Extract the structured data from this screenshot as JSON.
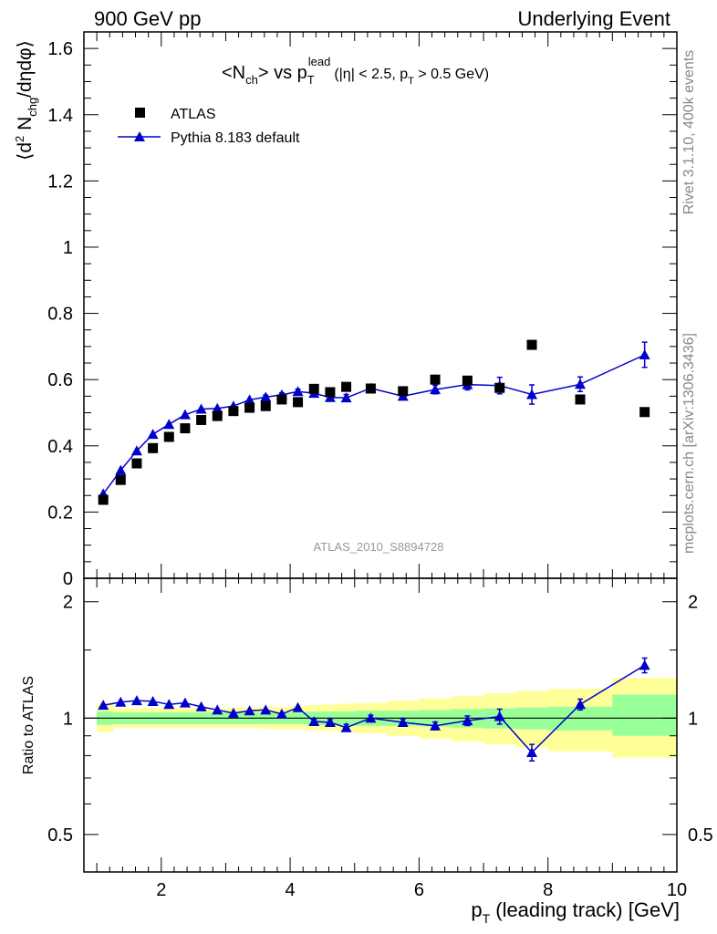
{
  "header": {
    "left": "900 GeV pp",
    "right": "Underlying Event"
  },
  "side_labels": {
    "top": "Rivet 3.1.10,  400k events",
    "bottom": "mcplots.cern.ch [arXiv:1306.3436]"
  },
  "watermark": "ATLAS_2010_S8894728",
  "chart_data": [
    {
      "type": "scatter",
      "panel": "main",
      "title": "<Nch> vs pT lead (|η| < 2.5, pT > 0.5 GeV)",
      "xlabel": "pT (leading track) [GeV]",
      "ylabel": "⟨d² Nchg/dηdφ⟩",
      "xlim": [
        0.8,
        10.0
      ],
      "ylim": [
        0,
        1.65
      ],
      "x_ticks": [
        2,
        4,
        6,
        8,
        10
      ],
      "y_ticks": [
        0,
        0.2,
        0.4,
        0.6,
        0.8,
        1,
        1.2,
        1.4,
        1.6
      ],
      "y_tick_labels": [
        "0",
        "0.2",
        "0.4",
        "0.6",
        "0.8",
        "1",
        "1.2",
        "1.4",
        "1.6"
      ],
      "legend_position": "top-left",
      "series": [
        {
          "name": "ATLAS",
          "marker": "square",
          "color": "#000000",
          "x": [
            1.1,
            1.37,
            1.62,
            1.87,
            2.12,
            2.37,
            2.62,
            2.87,
            3.12,
            3.37,
            3.62,
            3.87,
            4.12,
            4.37,
            4.62,
            4.87,
            5.25,
            5.75,
            6.25,
            6.75,
            7.25,
            7.75,
            8.5,
            9.5
          ],
          "y": [
            0.237,
            0.297,
            0.347,
            0.393,
            0.427,
            0.453,
            0.478,
            0.49,
            0.505,
            0.515,
            0.52,
            0.54,
            0.532,
            0.572,
            0.562,
            0.578,
            0.573,
            0.565,
            0.6,
            0.597,
            0.575,
            0.705,
            0.54,
            0.502
          ]
        },
        {
          "name": "Pythia 8.183 default",
          "marker": "triangle",
          "color": "#0000cc",
          "x": [
            1.1,
            1.37,
            1.62,
            1.87,
            2.12,
            2.37,
            2.62,
            2.87,
            3.12,
            3.37,
            3.62,
            3.87,
            4.12,
            4.37,
            4.62,
            4.87,
            5.25,
            5.75,
            6.25,
            6.75,
            7.25,
            7.75,
            8.5,
            9.5
          ],
          "y": [
            0.255,
            0.326,
            0.385,
            0.435,
            0.465,
            0.494,
            0.511,
            0.513,
            0.52,
            0.539,
            0.547,
            0.554,
            0.564,
            0.559,
            0.546,
            0.545,
            0.574,
            0.55,
            0.57,
            0.585,
            0.582,
            0.555,
            0.586,
            0.675
          ],
          "yerr": [
            0.003,
            0.003,
            0.003,
            0.003,
            0.004,
            0.004,
            0.004,
            0.005,
            0.005,
            0.005,
            0.006,
            0.006,
            0.007,
            0.008,
            0.009,
            0.01,
            0.009,
            0.011,
            0.013,
            0.016,
            0.025,
            0.029,
            0.022,
            0.038
          ]
        }
      ]
    },
    {
      "type": "line",
      "panel": "ratio",
      "xlabel": "pT (leading track) [GeV]",
      "ylabel": "Ratio to ATLAS",
      "xlim": [
        0.8,
        10.0
      ],
      "ylim": [
        0.4,
        2.3
      ],
      "y_scale": "log",
      "y_ticks": [
        0.5,
        1,
        2
      ],
      "y_tick_labels": [
        "0.5",
        "1",
        "2"
      ],
      "reference_line": 1,
      "bands": {
        "x_edges": [
          1.0,
          1.25,
          1.5,
          1.75,
          2.0,
          2.25,
          2.5,
          2.75,
          3.0,
          3.25,
          3.5,
          3.75,
          4.0,
          4.25,
          4.5,
          4.75,
          5.0,
          5.5,
          6.0,
          6.5,
          7.0,
          7.5,
          8.0,
          9.0,
          10.0
        ],
        "green_lo": [
          0.96,
          0.965,
          0.965,
          0.965,
          0.965,
          0.965,
          0.965,
          0.965,
          0.965,
          0.965,
          0.965,
          0.965,
          0.965,
          0.96,
          0.96,
          0.96,
          0.955,
          0.955,
          0.95,
          0.945,
          0.94,
          0.935,
          0.93,
          0.9
        ],
        "green_hi": [
          1.04,
          1.035,
          1.035,
          1.035,
          1.035,
          1.035,
          1.035,
          1.035,
          1.035,
          1.035,
          1.035,
          1.035,
          1.035,
          1.04,
          1.04,
          1.04,
          1.045,
          1.045,
          1.05,
          1.055,
          1.06,
          1.065,
          1.07,
          1.15
        ],
        "yellow_lo": [
          0.92,
          0.945,
          0.945,
          0.945,
          0.945,
          0.945,
          0.945,
          0.945,
          0.945,
          0.945,
          0.94,
          0.935,
          0.935,
          0.93,
          0.925,
          0.92,
          0.915,
          0.9,
          0.885,
          0.87,
          0.855,
          0.84,
          0.82,
          0.79
        ],
        "yellow_hi": [
          1.09,
          1.06,
          1.06,
          1.06,
          1.06,
          1.06,
          1.06,
          1.06,
          1.065,
          1.065,
          1.07,
          1.07,
          1.075,
          1.08,
          1.085,
          1.09,
          1.095,
          1.11,
          1.125,
          1.14,
          1.16,
          1.175,
          1.19,
          1.27
        ]
      },
      "series": [
        {
          "name": "Pythia 8.183 default",
          "marker": "triangle",
          "color": "#0000cc",
          "x": [
            1.1,
            1.37,
            1.62,
            1.87,
            2.12,
            2.37,
            2.62,
            2.87,
            3.12,
            3.37,
            3.62,
            3.87,
            4.12,
            4.37,
            4.62,
            4.87,
            5.25,
            5.75,
            6.25,
            6.75,
            7.25,
            7.75,
            8.5,
            9.5
          ],
          "y": [
            1.08,
            1.1,
            1.11,
            1.105,
            1.085,
            1.095,
            1.07,
            1.05,
            1.03,
            1.045,
            1.05,
            1.025,
            1.065,
            0.98,
            0.975,
            0.945,
            1.0,
            0.975,
            0.955,
            0.985,
            1.01,
            0.815,
            1.085,
            1.37
          ],
          "yerr": [
            0.01,
            0.01,
            0.01,
            0.01,
            0.01,
            0.01,
            0.01,
            0.01,
            0.01,
            0.01,
            0.01,
            0.01,
            0.012,
            0.015,
            0.016,
            0.018,
            0.017,
            0.02,
            0.022,
            0.028,
            0.045,
            0.04,
            0.035,
            0.06
          ]
        }
      ]
    }
  ],
  "colors": {
    "band_green": "#99ff99",
    "band_yellow": "#ffff99",
    "pythia": "#0000cc",
    "atlas": "#000000",
    "grey_text": "#888888"
  }
}
